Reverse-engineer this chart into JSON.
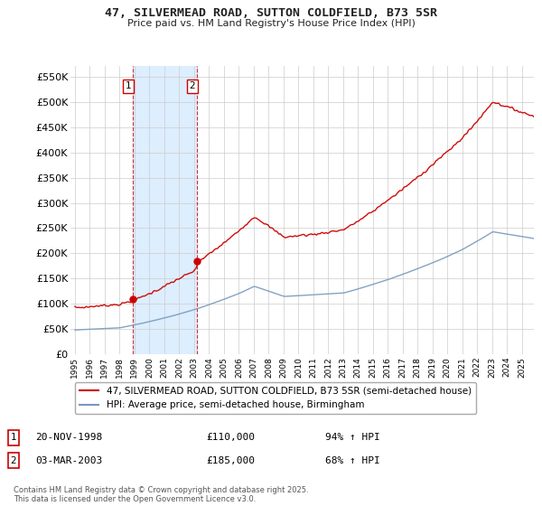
{
  "title": "47, SILVERMEAD ROAD, SUTTON COLDFIELD, B73 5SR",
  "subtitle": "Price paid vs. HM Land Registry's House Price Index (HPI)",
  "property_label": "47, SILVERMEAD ROAD, SUTTON COLDFIELD, B73 5SR (semi-detached house)",
  "hpi_label": "HPI: Average price, semi-detached house, Birmingham",
  "property_color": "#cc0000",
  "hpi_color": "#7799bb",
  "purchases": [
    {
      "year": 1998.89,
      "price": 110000,
      "label": "1",
      "date_str": "20-NOV-1998",
      "pct": "94% ↑ HPI"
    },
    {
      "year": 2003.17,
      "price": 185000,
      "label": "2",
      "date_str": "03-MAR-2003",
      "pct": "68% ↑ HPI"
    }
  ],
  "ylim": [
    0,
    572000
  ],
  "yticks": [
    0,
    50000,
    100000,
    150000,
    200000,
    250000,
    300000,
    350000,
    400000,
    450000,
    500000,
    550000
  ],
  "ytick_labels": [
    "£0",
    "£50K",
    "£100K",
    "£150K",
    "£200K",
    "£250K",
    "£300K",
    "£350K",
    "£400K",
    "£450K",
    "£500K",
    "£550K"
  ],
  "x_start_year": 1995,
  "x_end_year": 2025,
  "footnote": "Contains HM Land Registry data © Crown copyright and database right 2025.\nThis data is licensed under the Open Government Licence v3.0.",
  "background_color": "#ffffff",
  "grid_color": "#cccccc",
  "span_color": "#ddeeff"
}
